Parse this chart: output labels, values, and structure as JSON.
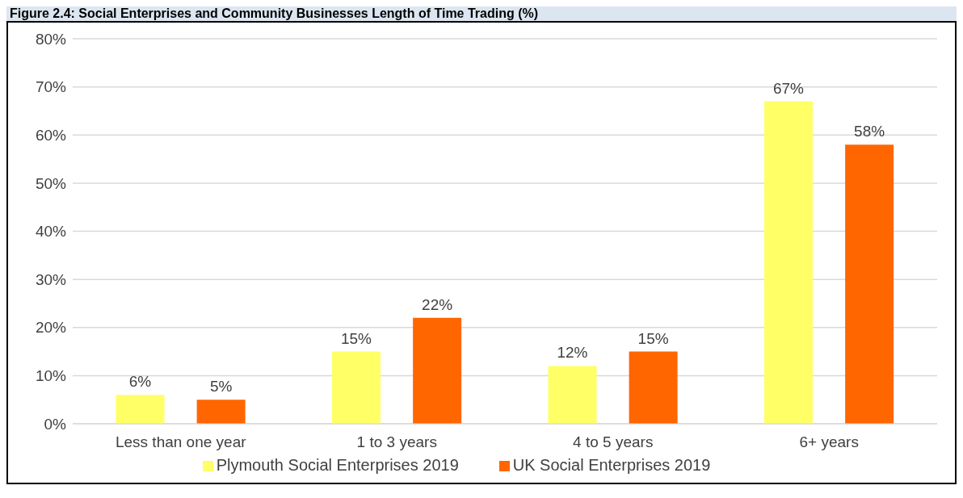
{
  "chart_data": {
    "type": "bar",
    "title": "Figure 2.4: Social Enterprises and Community Businesses Length of Time Trading (%)",
    "categories": [
      "Less than one year",
      "1 to 3 years",
      "4 to 5 years",
      "6+ years"
    ],
    "series": [
      {
        "name": "Plymouth Social Enterprises 2019",
        "color": "#ffff66",
        "values": [
          6,
          15,
          12,
          67
        ],
        "value_labels": [
          "6%",
          "15%",
          "12%",
          "67%"
        ]
      },
      {
        "name": "UK Social Enterprises 2019",
        "color": "#ff6600",
        "values": [
          5,
          22,
          15,
          58
        ],
        "value_labels": [
          "5%",
          "22%",
          "15%",
          "58%"
        ]
      }
    ],
    "ylim": [
      0,
      80
    ],
    "yticks": [
      {
        "value": 0,
        "label": "0%"
      },
      {
        "value": 10,
        "label": "10%"
      },
      {
        "value": 20,
        "label": "20%"
      },
      {
        "value": 30,
        "label": "30%"
      },
      {
        "value": 40,
        "label": "40%"
      },
      {
        "value": 50,
        "label": "50%"
      },
      {
        "value": 60,
        "label": "60%"
      },
      {
        "value": 70,
        "label": "70%"
      },
      {
        "value": 80,
        "label": "80%"
      }
    ],
    "grid": "y",
    "legend": "bottom"
  }
}
